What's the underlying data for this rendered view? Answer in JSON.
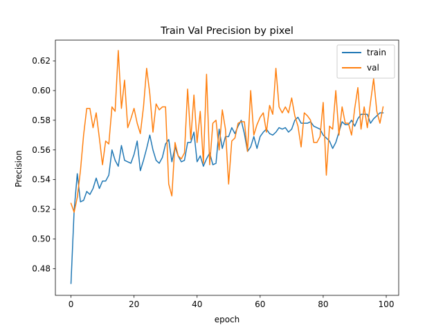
{
  "chart_data": {
    "type": "line",
    "title": "Train Val Precision by pixel",
    "xlabel": "epoch",
    "ylabel": "Precision",
    "xlim": [
      -4.95,
      103.95
    ],
    "ylim": [
      0.462,
      0.634
    ],
    "xticks": [
      0,
      20,
      40,
      60,
      80,
      100
    ],
    "yticks": [
      0.48,
      0.5,
      0.52,
      0.54,
      0.56,
      0.58,
      0.6,
      0.62
    ],
    "ytick_labels": [
      "0.48",
      "0.50",
      "0.52",
      "0.54",
      "0.56",
      "0.58",
      "0.60",
      "0.62"
    ],
    "grid": false,
    "legend_position": "upper right",
    "x": [
      0,
      1,
      2,
      3,
      4,
      5,
      6,
      7,
      8,
      9,
      10,
      11,
      12,
      13,
      14,
      15,
      16,
      17,
      18,
      19,
      20,
      21,
      22,
      23,
      24,
      25,
      26,
      27,
      28,
      29,
      30,
      31,
      32,
      33,
      34,
      35,
      36,
      37,
      38,
      39,
      40,
      41,
      42,
      43,
      44,
      45,
      46,
      47,
      48,
      49,
      50,
      51,
      52,
      53,
      54,
      55,
      56,
      57,
      58,
      59,
      60,
      61,
      62,
      63,
      64,
      65,
      66,
      67,
      68,
      69,
      70,
      71,
      72,
      73,
      74,
      75,
      76,
      77,
      78,
      79,
      80,
      81,
      82,
      83,
      84,
      85,
      86,
      87,
      88,
      89,
      90,
      91,
      92,
      93,
      94,
      95,
      96,
      97,
      98,
      99
    ],
    "series": [
      {
        "name": "train",
        "color": "#1f77b4",
        "values": [
          0.47,
          0.519,
          0.544,
          0.525,
          0.526,
          0.532,
          0.53,
          0.534,
          0.541,
          0.534,
          0.539,
          0.539,
          0.543,
          0.56,
          0.553,
          0.549,
          0.563,
          0.553,
          0.552,
          0.551,
          0.557,
          0.566,
          0.546,
          0.553,
          0.561,
          0.57,
          0.56,
          0.553,
          0.551,
          0.555,
          0.564,
          0.567,
          0.552,
          0.562,
          0.556,
          0.552,
          0.553,
          0.565,
          0.565,
          0.572,
          0.552,
          0.556,
          0.549,
          0.554,
          0.558,
          0.55,
          0.551,
          0.574,
          0.561,
          0.569,
          0.569,
          0.575,
          0.571,
          0.576,
          0.58,
          0.571,
          0.559,
          0.562,
          0.569,
          0.561,
          0.569,
          0.572,
          0.574,
          0.571,
          0.57,
          0.572,
          0.575,
          0.574,
          0.575,
          0.572,
          0.574,
          0.58,
          0.582,
          0.578,
          0.578,
          0.578,
          0.579,
          0.576,
          0.575,
          0.574,
          0.57,
          0.568,
          0.566,
          0.561,
          0.565,
          0.572,
          0.579,
          0.577,
          0.577,
          0.58,
          0.576,
          0.581,
          0.584,
          0.584,
          0.584,
          0.578,
          0.581,
          0.583,
          0.585,
          0.585
        ]
      },
      {
        "name": "val",
        "color": "#ff7f0e",
        "values": [
          0.524,
          0.518,
          0.528,
          0.546,
          0.57,
          0.588,
          0.588,
          0.575,
          0.585,
          0.568,
          0.55,
          0.566,
          0.564,
          0.589,
          0.586,
          0.627,
          0.588,
          0.607,
          0.575,
          0.581,
          0.588,
          0.578,
          0.571,
          0.589,
          0.615,
          0.598,
          0.572,
          0.591,
          0.587,
          0.589,
          0.589,
          0.537,
          0.529,
          0.565,
          0.556,
          0.554,
          0.558,
          0.601,
          0.567,
          0.597,
          0.565,
          0.586,
          0.551,
          0.611,
          0.55,
          0.578,
          0.58,
          0.56,
          0.587,
          0.574,
          0.537,
          0.566,
          0.568,
          0.578,
          0.579,
          0.579,
          0.559,
          0.6,
          0.57,
          0.577,
          0.582,
          0.585,
          0.572,
          0.59,
          0.584,
          0.615,
          0.589,
          0.585,
          0.589,
          0.585,
          0.595,
          0.583,
          0.576,
          0.562,
          0.585,
          0.583,
          0.58,
          0.565,
          0.565,
          0.569,
          0.592,
          0.543,
          0.576,
          0.574,
          0.6,
          0.57,
          0.589,
          0.578,
          0.578,
          0.57,
          0.588,
          0.602,
          0.574,
          0.589,
          0.575,
          0.592,
          0.608,
          0.586,
          0.578,
          0.589
        ]
      }
    ]
  }
}
